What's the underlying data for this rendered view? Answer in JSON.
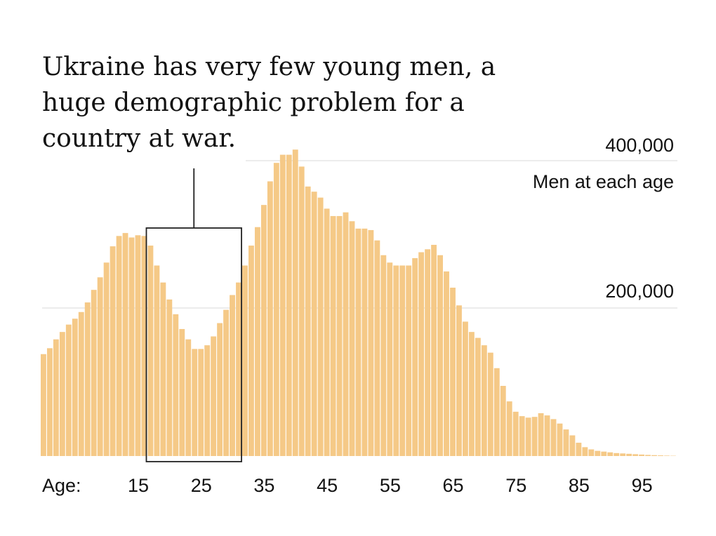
{
  "chart_data": {
    "type": "bar",
    "title_lines": [
      "Ukraine has very few young men, a",
      "huge demographic problem for a",
      "country at war."
    ],
    "ylabel": "Men at each age",
    "ylim": [
      0,
      420000
    ],
    "y_ticks": [
      {
        "value": 200000,
        "label": "200,000"
      },
      {
        "value": 400000,
        "label": "400,000"
      }
    ],
    "x_prefix": "Age:",
    "x_ticks": [
      15,
      25,
      35,
      45,
      55,
      65,
      75,
      85,
      95
    ],
    "highlight": {
      "from_age": 17,
      "to_age": 31
    },
    "colors": {
      "bar": "#f5c987",
      "text": "#121212",
      "grid": "#e6e6e6",
      "highlight": "#222222"
    },
    "ages": [
      0,
      1,
      2,
      3,
      4,
      5,
      6,
      7,
      8,
      9,
      10,
      11,
      12,
      13,
      14,
      15,
      16,
      17,
      18,
      19,
      20,
      21,
      22,
      23,
      24,
      25,
      26,
      27,
      28,
      29,
      30,
      31,
      32,
      33,
      34,
      35,
      36,
      37,
      38,
      39,
      40,
      41,
      42,
      43,
      44,
      45,
      46,
      47,
      48,
      49,
      50,
      51,
      52,
      53,
      54,
      55,
      56,
      57,
      58,
      59,
      60,
      61,
      62,
      63,
      64,
      65,
      66,
      67,
      68,
      69,
      70,
      71,
      72,
      73,
      74,
      75,
      76,
      77,
      78,
      79,
      80,
      81,
      82,
      83,
      84,
      85,
      86,
      87,
      88,
      89,
      90,
      91,
      92,
      93,
      94,
      95,
      96,
      97,
      98,
      99,
      100
    ],
    "values": [
      138000,
      146000,
      158000,
      168000,
      178000,
      186000,
      195000,
      208000,
      225000,
      242000,
      262000,
      284000,
      298000,
      302000,
      296000,
      299000,
      298000,
      285000,
      258000,
      235000,
      212000,
      192000,
      172000,
      158000,
      145000,
      145000,
      150000,
      162000,
      180000,
      198000,
      218000,
      235000,
      258000,
      285000,
      310000,
      340000,
      372000,
      397000,
      408000,
      408000,
      415000,
      392000,
      365000,
      358000,
      350000,
      335000,
      325000,
      325000,
      330000,
      318000,
      308000,
      308000,
      306000,
      292000,
      272000,
      262000,
      258000,
      258000,
      258000,
      268000,
      276000,
      280000,
      286000,
      272000,
      250000,
      228000,
      204000,
      182000,
      168000,
      160000,
      150000,
      140000,
      119000,
      95000,
      74000,
      60000,
      54000,
      52000,
      53000,
      58000,
      55000,
      50000,
      44000,
      36000,
      28000,
      18000,
      12000,
      9000,
      7000,
      6000,
      5000,
      4000,
      3500,
      3000,
      2500,
      2000,
      1500,
      1200,
      900,
      600,
      400
    ]
  }
}
